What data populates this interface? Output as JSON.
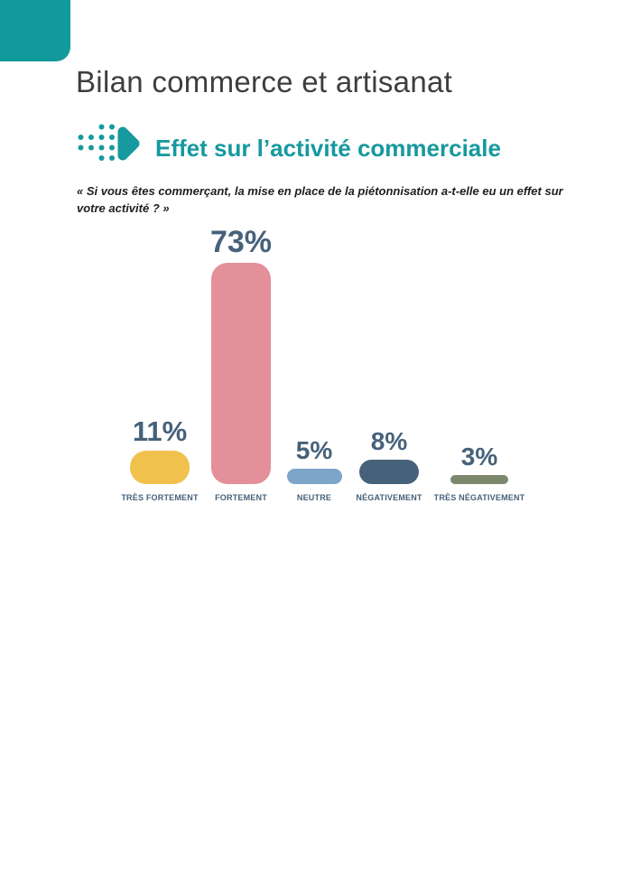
{
  "page": {
    "title": "Bilan commerce et artisanat"
  },
  "section": {
    "heading": "Effet sur l’activité commerciale",
    "quote_line1": "« Si vous êtes commerçant, la mise en place de la piétonnisation a-t-elle eu un effet  sur",
    "quote_line2": "votre activité ? »"
  },
  "colors": {
    "teal_block": "#12999b",
    "teal_accent": "#16999f",
    "slate": "#46617a",
    "title_color": "#3e3e3e",
    "quote_color": "#1e1e1e"
  },
  "chart_data": {
    "type": "bar",
    "title": "Effet sur l’activité commerciale",
    "subtitle": "« Si vous êtes commerçant, la mise en place de la piétonnisation a-t-elle eu un effet sur votre activité ? »",
    "categories": [
      "TRÈS FORTEMENT",
      "FORTEMENT",
      "NEUTRE",
      "NÉGATIVEMENT",
      "TRÈS NÉGATIVEMENT"
    ],
    "values": [
      11,
      73,
      5,
      8,
      3
    ],
    "value_labels": [
      "11%",
      "73%",
      "5%",
      "8%",
      "3%"
    ],
    "bar_colors": [
      "#f0c24d",
      "#e3909a",
      "#7da5c9",
      "#46617a",
      "#7b886c"
    ],
    "unit": "%",
    "ylim": [
      0,
      100
    ],
    "grid": false,
    "legend": false,
    "orientation": "vertical",
    "value_label_position": "above-bar",
    "category_label_position": "below-bar"
  }
}
